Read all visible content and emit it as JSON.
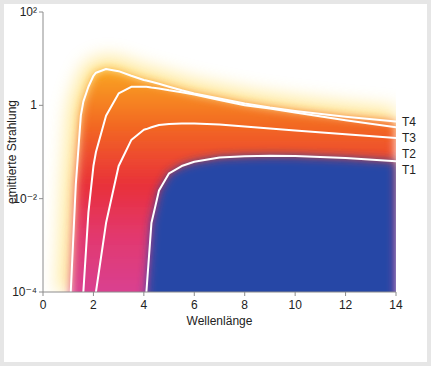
{
  "chart_data": {
    "type": "line",
    "x_label": "Wellenlänge",
    "y_label": "emittierte Strahlung",
    "x": [
      1.1,
      1.3,
      1.5,
      1.6,
      1.8,
      2,
      2.1,
      2.5,
      3,
      3.5,
      4,
      4.1,
      4.3,
      4.6,
      5,
      5.5,
      6,
      7,
      8,
      9,
      10,
      12,
      14
    ],
    "series": [
      {
        "name": "T1",
        "color": "#ffffff",
        "values": [
          null,
          null,
          null,
          null,
          null,
          null,
          null,
          null,
          null,
          null,
          null,
          0.0001,
          0.003,
          0.015,
          0.035,
          0.05,
          0.062,
          0.076,
          0.081,
          0.083,
          0.082,
          0.074,
          0.063
        ]
      },
      {
        "name": "T2",
        "color": "#ffffff",
        "values": [
          null,
          null,
          null,
          null,
          null,
          null,
          0.0001,
          0.003,
          0.05,
          0.18,
          0.3,
          0.31,
          0.34,
          0.38,
          0.4,
          0.41,
          0.41,
          0.39,
          0.35,
          0.32,
          0.29,
          0.24,
          0.2
        ]
      },
      {
        "name": "T3",
        "color": "#ffffff",
        "values": [
          null,
          null,
          null,
          0.0001,
          0.005,
          0.05,
          0.1,
          0.6,
          1.8,
          2.5,
          2.5,
          2.5,
          2.4,
          2.3,
          2.1,
          1.9,
          1.7,
          1.3,
          1.0,
          0.85,
          0.7,
          0.48,
          0.34
        ]
      },
      {
        "name": "T4",
        "color": "#ffffff",
        "values": [
          0.0001,
          0.02,
          0.6,
          1.2,
          2.5,
          4.3,
          5,
          6,
          5.4,
          4.3,
          3.5,
          3.4,
          3.2,
          2.9,
          2.5,
          2.1,
          1.8,
          1.4,
          1.1,
          0.9,
          0.76,
          0.57,
          0.45
        ]
      }
    ],
    "xlim": [
      0,
      14
    ],
    "ylim": [
      0.0001,
      100
    ],
    "xticks": [
      0,
      2,
      4,
      6,
      8,
      10,
      12,
      14
    ],
    "yticks": [
      {
        "value": 0.0001,
        "label": "10⁻⁴"
      },
      {
        "value": 0.01,
        "label": "10⁻²"
      },
      1,
      {
        "value": 100,
        "label": "10²"
      }
    ],
    "log": "y",
    "grid": false
  }
}
